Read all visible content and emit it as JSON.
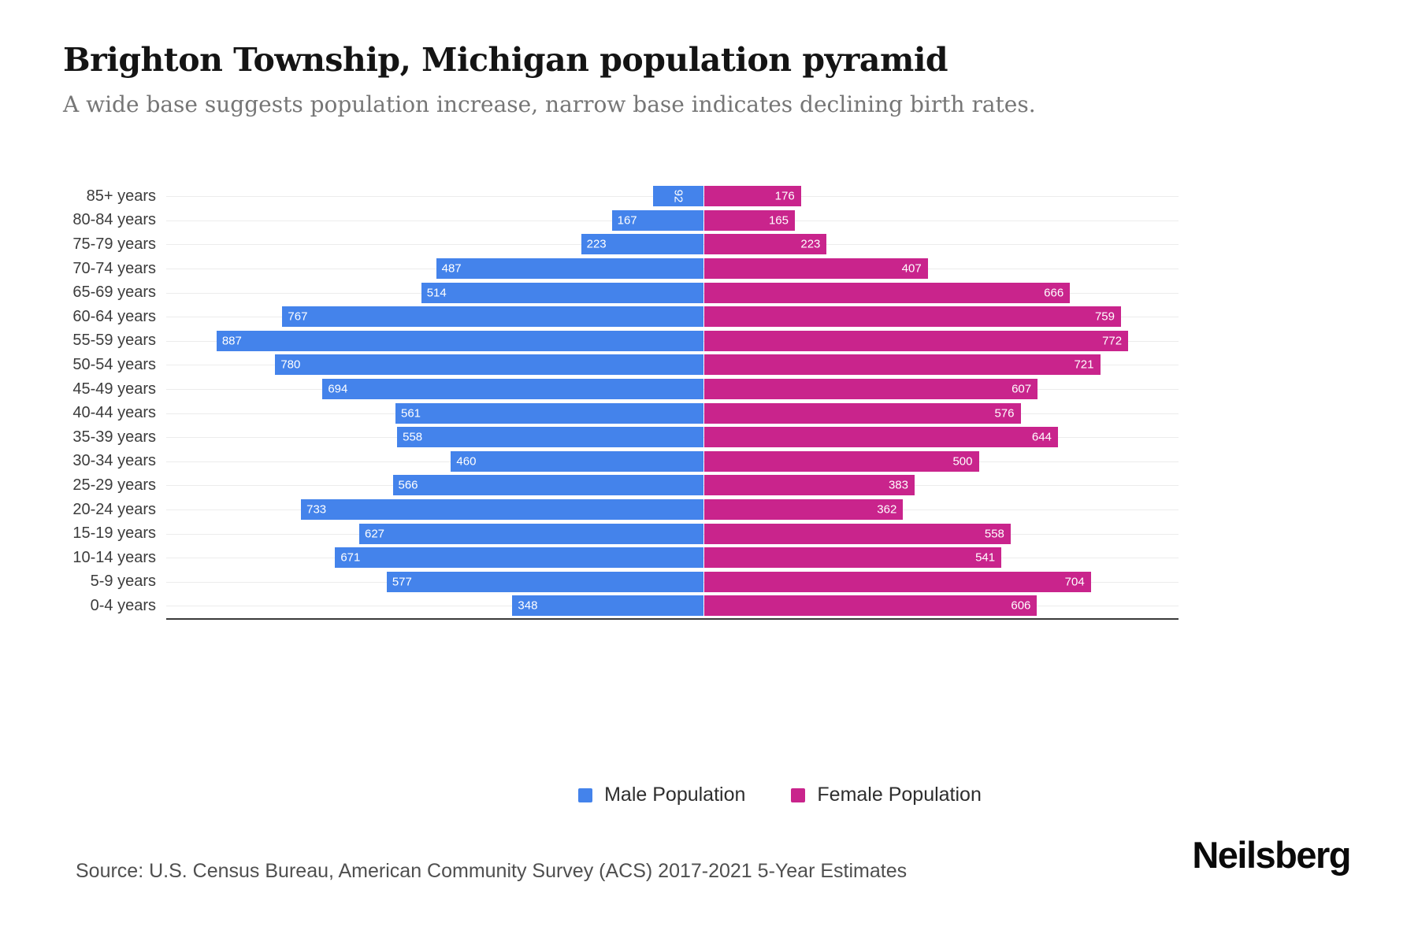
{
  "header": {
    "title": "Brighton Township, Michigan population pyramid",
    "subtitle": "A wide base suggests population increase, narrow base indicates declining birth rates."
  },
  "chart_data": {
    "type": "bar",
    "variant": "population-pyramid",
    "orientation": "horizontal",
    "grid": true,
    "legend_position": "bottom",
    "value_labels": "inside-end",
    "categories": [
      "85+ years",
      "80-84 years",
      "75-79 years",
      "70-74 years",
      "65-69 years",
      "60-64 years",
      "55-59 years",
      "50-54 years",
      "45-49 years",
      "40-44 years",
      "35-39 years",
      "30-34 years",
      "25-29 years",
      "20-24 years",
      "15-19 years",
      "10-14 years",
      "5-9 years",
      "0-4 years"
    ],
    "series": [
      {
        "name": "Male Population",
        "color": "#4483EB",
        "direction": "left",
        "values": [
          92,
          167,
          223,
          487,
          514,
          767,
          887,
          780,
          694,
          561,
          558,
          460,
          566,
          733,
          627,
          671,
          577,
          348
        ]
      },
      {
        "name": "Female Population",
        "color": "#C9248C",
        "direction": "right",
        "values": [
          176,
          165,
          223,
          407,
          666,
          759,
          772,
          721,
          607,
          576,
          644,
          500,
          383,
          362,
          558,
          541,
          704,
          606
        ]
      }
    ]
  },
  "footer": {
    "source": "Source: U.S. Census Bureau, American Community Survey (ACS) 2017-2021 5-Year Estimates",
    "brand": "Neilsberg"
  }
}
